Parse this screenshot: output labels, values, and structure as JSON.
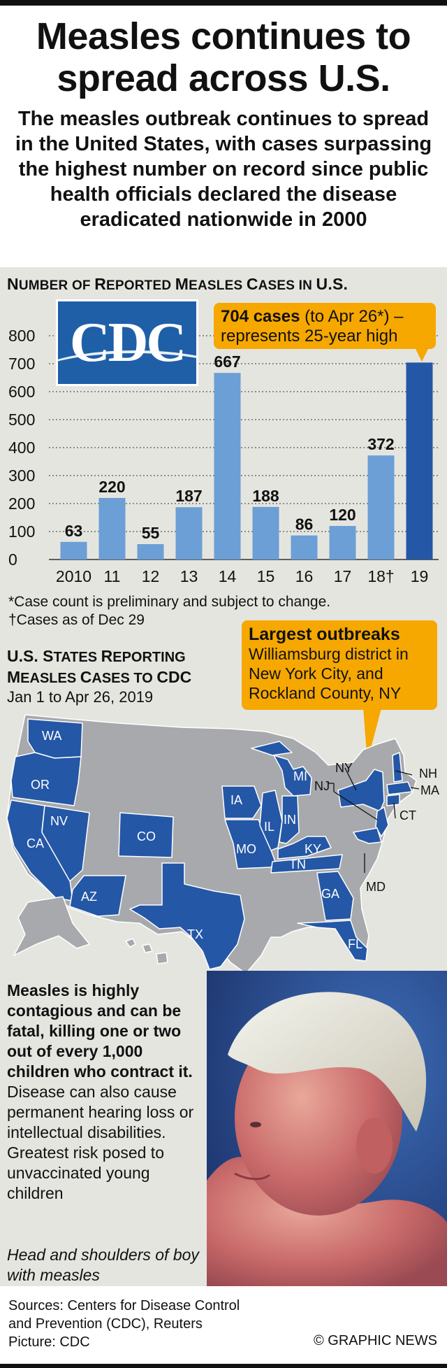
{
  "headline": "Measles continues to spread across U.S.",
  "subhead": "The measles outbreak continues to spread in the United States, with cases surpassing the highest number on record since public health officials declared the disease eradicated nationwide in 2000",
  "chart_data": {
    "type": "bar",
    "title_first": "N",
    "title_rest_1": "UMBER OF ",
    "title_words": [
      "N",
      "UMBER OF ",
      "R",
      "EPORTED ",
      "M",
      "EASLES ",
      "C",
      "ASES IN ",
      "U.S."
    ],
    "title": "Number of Reported Measles Cases in U.S.",
    "categories": [
      "2010",
      "11",
      "12",
      "13",
      "14",
      "15",
      "16",
      "17",
      "18†",
      "19"
    ],
    "values": [
      63,
      220,
      55,
      187,
      667,
      188,
      86,
      120,
      372,
      704
    ],
    "value_labels": [
      "63",
      "220",
      "55",
      "187",
      "667",
      "188",
      "86",
      "120",
      "372",
      ""
    ],
    "highlight_index": 9,
    "yticks": [
      "0",
      "100",
      "200",
      "300",
      "400",
      "500",
      "600",
      "700",
      "800"
    ],
    "ylim": [
      0,
      800
    ],
    "colors": {
      "bar": "#6b9fd6",
      "highlight": "#2457a6",
      "grid": "#333333"
    }
  },
  "logo": {
    "text": "CDC"
  },
  "callout_cases": {
    "bold": "704 cases",
    "rest": " (to Apr 26*) –",
    "line2": "represents 25-year high"
  },
  "footnotes": [
    "*Case count is preliminary and subject to change.",
    "†Cases as of Dec 29"
  ],
  "states": {
    "title_words": [
      "U.S. S",
      "TATES ",
      "R",
      "EPORTING",
      "M",
      "EASLES ",
      "C",
      "ASES TO ",
      "CDC"
    ],
    "date": "Jan 1 to Apr 26, 2019",
    "labels": [
      "WA",
      "OR",
      "CA",
      "NV",
      "AZ",
      "CO",
      "TX",
      "IA",
      "MO",
      "IL",
      "IN",
      "MI",
      "KY",
      "TN",
      "GA",
      "FL",
      "NY",
      "NJ",
      "NH",
      "MA",
      "CT",
      "MD"
    ],
    "colors": {
      "affected": "#2457a6",
      "other": "#a7a9ac"
    }
  },
  "callout_outbreaks": {
    "heading": "Largest outbreaks",
    "body": "Williamsburg district in New York City, and Rockland County, NY"
  },
  "measles_text": {
    "bold": "Measles is highly contagious and can be fatal, killing one or two out of every 1,000 children who contract it.",
    "rest": " Disease can also cause permanent hearing loss or intellectual disabilities. Greatest risk posed to unvaccinated young children"
  },
  "caption": "Head and shoulders of boy with measles",
  "sources": [
    "Sources: Centers for Disease Control",
    "and Prevention (CDC), Reuters",
    "Picture: CDC"
  ],
  "copyright": "© GRAPHIC NEWS"
}
